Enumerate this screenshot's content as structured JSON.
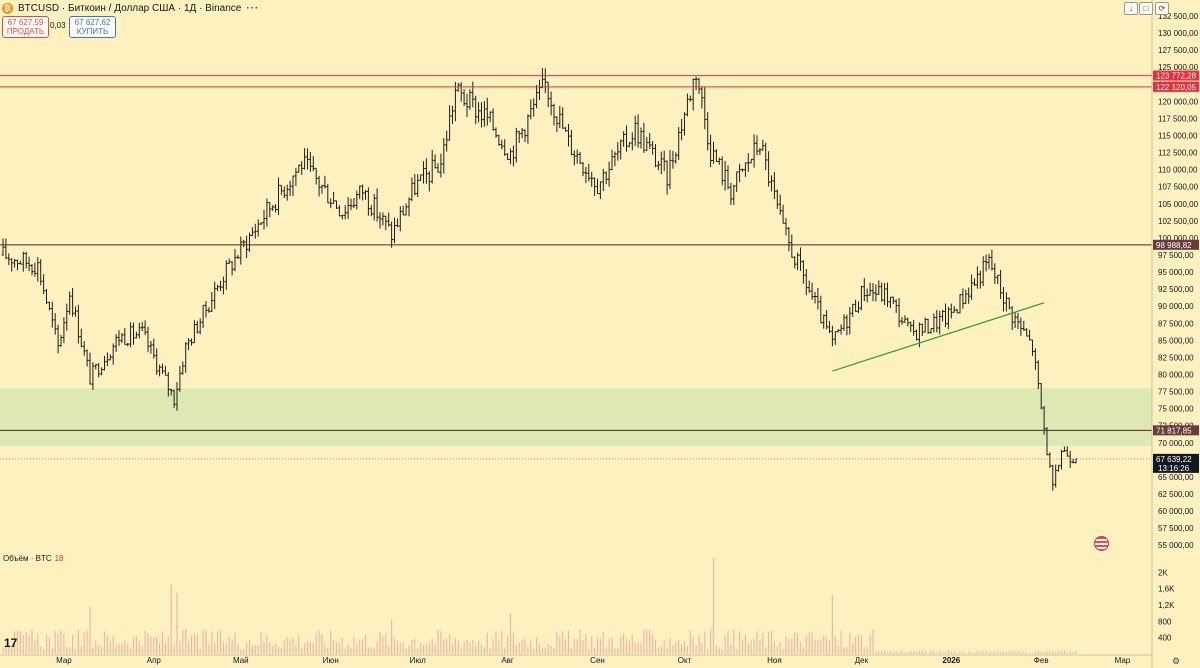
{
  "header": {
    "title": "BTCUSD · Биткоин / Доллар США · 1Д · Binance",
    "more_icon": "more-dots-icon"
  },
  "trade": {
    "sell_price": "67 627,59",
    "sell_label": "ПРОДАТЬ",
    "spread": "0,03",
    "buy_price": "67 627,62",
    "buy_label": "КУПИТЬ"
  },
  "toolbar": {
    "down_icon": "arrow-down-icon",
    "square_icon": "square-icon",
    "refresh_icon": "refresh-icon"
  },
  "volume": {
    "label": "Объём · BTC",
    "value": "18"
  },
  "flag_icon": "us-flag-icon",
  "settings_icon": "gear-icon",
  "colors": {
    "background": "#fcf1bf",
    "red_line": "#e5303e",
    "support_line": "#4a2b2b",
    "trendline": "#3f9a3a",
    "zone": "#d8e6b0",
    "candle": "#1e1e1e",
    "volume_bar": "#f0b6a8"
  },
  "chart_data": {
    "type": "bar",
    "symbol": "BTCUSD",
    "timeframe": "1D",
    "ylim": [
      54000,
      132500
    ],
    "y_ticks": [
      "132 500,00",
      "130 000,00",
      "127 500,00",
      "125 000,00",
      "122 500,00",
      "120 000,00",
      "117 500,00",
      "115 000,00",
      "112 500,00",
      "110 000,00",
      "107 500,00",
      "105 000,00",
      "102 500,00",
      "100 000,00",
      "97 500,00",
      "95 000,00",
      "92 500,00",
      "90 000,00",
      "87 500,00",
      "85 000,00",
      "82 500,00",
      "80 000,00",
      "77 500,00",
      "75 000,00",
      "72 500,00",
      "70 000,00",
      "67 500,00",
      "65 000,00",
      "62 500,00",
      "60 000,00",
      "57 500,00",
      "55 000,00"
    ],
    "x_labels": [
      {
        "label": "Мар",
        "date": "2025-03-01"
      },
      {
        "label": "Апр",
        "date": "2025-04-01"
      },
      {
        "label": "Май",
        "date": "2025-05-01"
      },
      {
        "label": "Июн",
        "date": "2025-06-01"
      },
      {
        "label": "Июл",
        "date": "2025-07-01"
      },
      {
        "label": "Авг",
        "date": "2025-08-01"
      },
      {
        "label": "Сен",
        "date": "2025-09-01"
      },
      {
        "label": "Окт",
        "date": "2025-10-01"
      },
      {
        "label": "Ноя",
        "date": "2025-11-01"
      },
      {
        "label": "Дек",
        "date": "2025-12-01"
      },
      {
        "label": "2026",
        "date": "2026-01-01",
        "bold": true
      },
      {
        "label": "Фев",
        "date": "2026-02-01"
      },
      {
        "label": "Мар",
        "date": "2026-03-01"
      }
    ],
    "date_start": "2025-02-08",
    "anchors": [
      [
        "2025-02-08",
        97500
      ],
      [
        "2025-02-20",
        96000
      ],
      [
        "2025-02-27",
        84000
      ],
      [
        "2025-03-03",
        92000
      ],
      [
        "2025-03-10",
        79500
      ],
      [
        "2025-03-20",
        85500
      ],
      [
        "2025-03-28",
        86000
      ],
      [
        "2025-04-08",
        76500
      ],
      [
        "2025-04-12",
        84000
      ],
      [
        "2025-04-25",
        94500
      ],
      [
        "2025-05-10",
        104000
      ],
      [
        "2025-05-22",
        111000
      ],
      [
        "2025-06-05",
        104000
      ],
      [
        "2025-06-12",
        107000
      ],
      [
        "2025-06-22",
        100500
      ],
      [
        "2025-06-30",
        107500
      ],
      [
        "2025-07-09",
        111000
      ],
      [
        "2025-07-14",
        121500
      ],
      [
        "2025-07-25",
        117500
      ],
      [
        "2025-08-02",
        112500
      ],
      [
        "2025-08-14",
        122500
      ],
      [
        "2025-08-22",
        114000
      ],
      [
        "2025-09-01",
        108000
      ],
      [
        "2025-09-14",
        116000
      ],
      [
        "2025-09-25",
        109000
      ],
      [
        "2025-10-05",
        124500
      ],
      [
        "2025-10-10",
        113000
      ],
      [
        "2025-10-17",
        107000
      ],
      [
        "2025-10-27",
        114000
      ],
      [
        "2025-11-04",
        101000
      ],
      [
        "2025-11-21",
        84500
      ],
      [
        "2025-12-02",
        92500
      ],
      [
        "2025-12-10",
        91500
      ],
      [
        "2025-12-18",
        86000
      ],
      [
        "2025-12-31",
        88500
      ],
      [
        "2026-01-14",
        96500
      ],
      [
        "2026-01-21",
        89500
      ],
      [
        "2026-01-29",
        84000
      ],
      [
        "2026-02-05",
        63000
      ],
      [
        "2026-02-08",
        69000
      ],
      [
        "2026-02-13",
        67639
      ]
    ],
    "lines": {
      "resistance_upper": 123772.28,
      "resistance_lower": 122120.05,
      "support_100k": 98988.82,
      "support_72k": 71817.85,
      "last_price": 67639.22
    },
    "line_labels": {
      "resistance_upper": "123 772,28",
      "resistance_lower": "122 120,05",
      "support_100k": "98 988,82",
      "support_72k": "71 817,85",
      "last_price": "67 639,22",
      "countdown": "13:16:26"
    },
    "zone": [
      69500,
      78000
    ],
    "trendline": [
      [
        "2025-11-21",
        80500
      ],
      [
        "2026-02-02",
        90500
      ]
    ],
    "volume": {
      "ylim": [
        0,
        2300
      ],
      "y_ticks": [
        "2K",
        "1,6K",
        "1,2K",
        "800",
        "400"
      ],
      "y_tick_values": [
        2000,
        1600,
        1200,
        800,
        400
      ],
      "spikes": [
        [
          "2025-04-07",
          1700
        ],
        [
          "2025-04-09",
          1500
        ],
        [
          "2025-10-11",
          2350
        ],
        [
          "2025-11-21",
          1450
        ],
        [
          "2025-06-22",
          850
        ],
        [
          "2025-08-02",
          1000
        ],
        [
          "2025-03-10",
          1150
        ]
      ],
      "typical": 550,
      "binance_cutoff": "2025-12-06",
      "tail_value": 60
    }
  }
}
